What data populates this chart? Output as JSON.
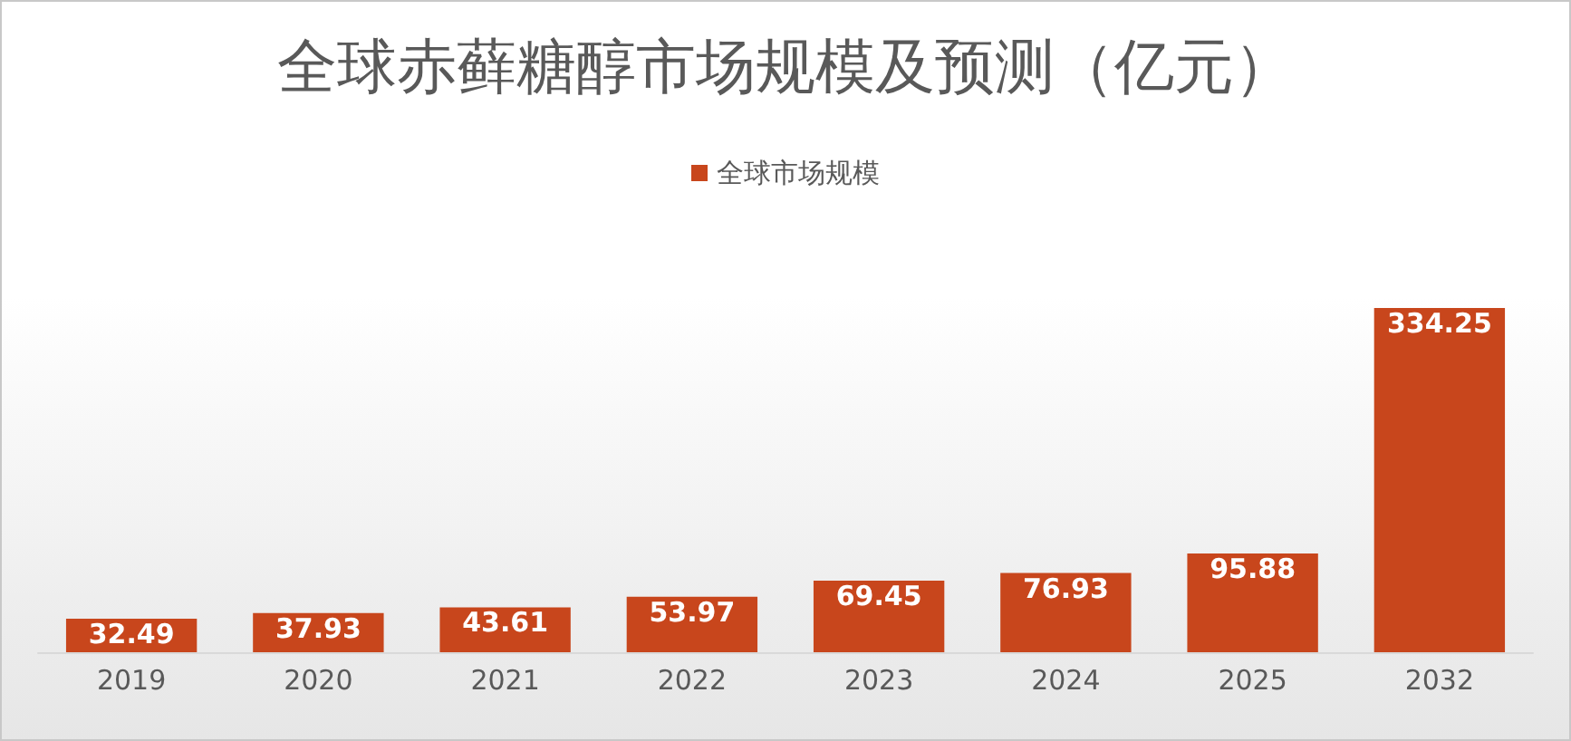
{
  "chart_data": {
    "type": "bar",
    "title": "全球赤藓糖醇市场规模及预测（亿元）",
    "categories": [
      "2019",
      "2020",
      "2021",
      "2022",
      "2023",
      "2024",
      "2025",
      "2032"
    ],
    "series": [
      {
        "name": "全球市场规模",
        "color": "#c8461c",
        "values": [
          32.49,
          37.93,
          43.61,
          53.97,
          69.45,
          76.93,
          95.88,
          334.25
        ]
      }
    ],
    "data_labels": true,
    "legend": "top"
  }
}
